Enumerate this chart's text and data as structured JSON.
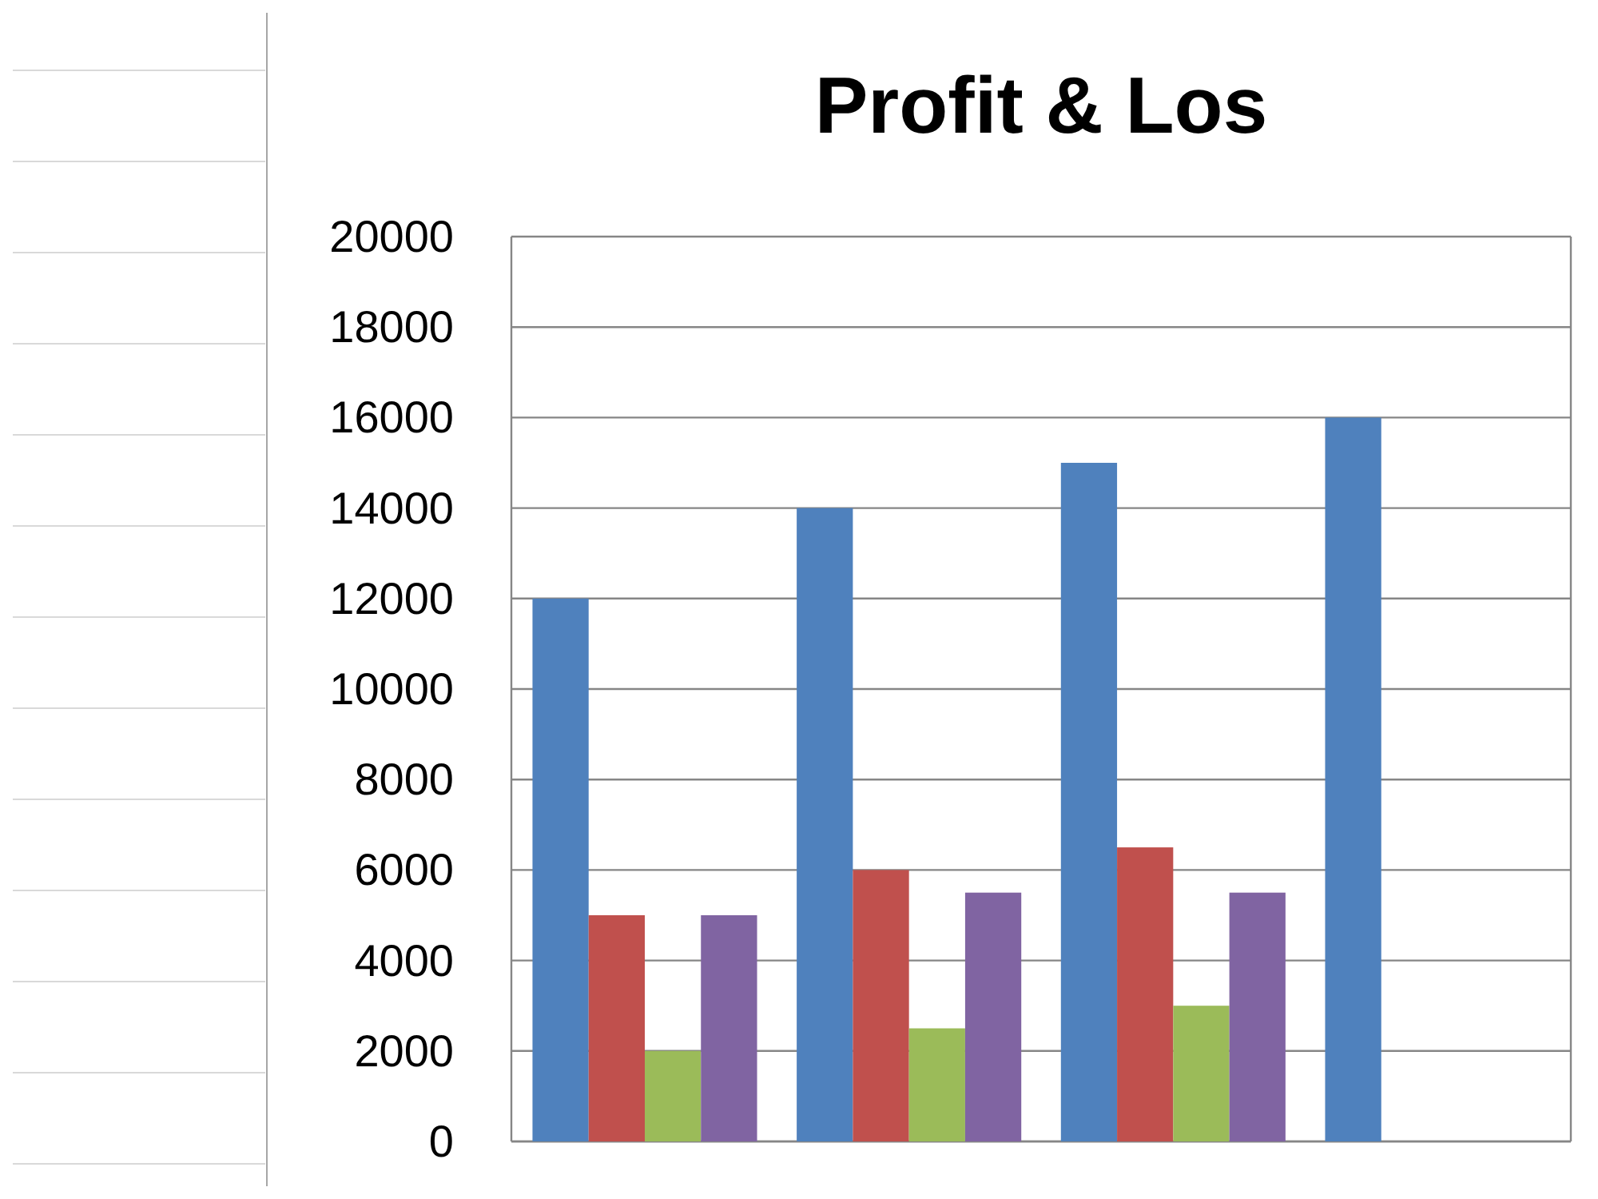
{
  "chart_data": {
    "type": "bar",
    "title": "Profit & Los",
    "categories": [
      null,
      null,
      null,
      null
    ],
    "series": [
      {
        "color": "#4f81bd",
        "values": [
          12000,
          14000,
          15000,
          16000
        ]
      },
      {
        "color": "#c0504d",
        "values": [
          5000,
          6000,
          6500,
          null
        ]
      },
      {
        "color": "#9bbb59",
        "values": [
          2000,
          2500,
          3000,
          null
        ]
      },
      {
        "color": "#8064a2",
        "values": [
          5000,
          5500,
          5500,
          null
        ]
      }
    ],
    "ylim": [
      0,
      20000
    ],
    "yticks": [
      0,
      2000,
      4000,
      6000,
      8000,
      10000,
      12000,
      14000,
      16000,
      18000,
      20000
    ],
    "grid": "y"
  }
}
